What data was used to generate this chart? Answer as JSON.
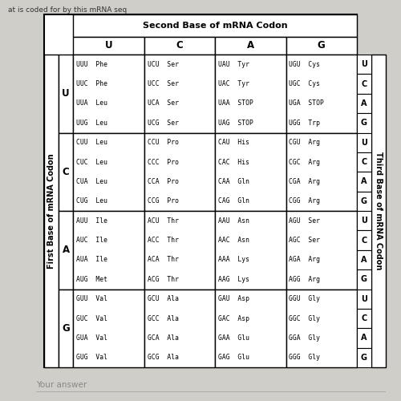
{
  "title_top": "at is coded for by this mRNA seq",
  "table_title": "Second Base of mRNA Codon",
  "second_bases": [
    "U",
    "C",
    "A",
    "G"
  ],
  "first_bases": [
    "U",
    "C",
    "A",
    "G"
  ],
  "third_bases_labels": [
    "U",
    "C",
    "A",
    "G"
  ],
  "left_label": "First Base of mRNA Codon",
  "right_label": "Third Base of mRNA Codon",
  "cells": [
    [
      [
        "UUU  Phe",
        "UUC  Phe",
        "UUA  Leu",
        "UUG  Leu"
      ],
      [
        "UCU  Ser",
        "UCC  Ser",
        "UCA  Ser",
        "UCG  Ser"
      ],
      [
        "UAU  Tyr",
        "UAC  Tyr",
        "UAA  STOP",
        "UAG  STOP"
      ],
      [
        "UGU  Cys",
        "UGC  Cys",
        "UGA  STOP",
        "UGG  Trp"
      ]
    ],
    [
      [
        "CUU  Leu",
        "CUC  Leu",
        "CUA  Leu",
        "CUG  Leu"
      ],
      [
        "CCU  Pro",
        "CCC  Pro",
        "CCA  Pro",
        "CCG  Pro"
      ],
      [
        "CAU  His",
        "CAC  His",
        "CAA  Gln",
        "CAG  Gln"
      ],
      [
        "CGU  Arg",
        "CGC  Arg",
        "CGA  Arg",
        "CGG  Arg"
      ]
    ],
    [
      [
        "AUU  Ile",
        "AUC  Ile",
        "AUA  Ile",
        "AUG  Met"
      ],
      [
        "ACU  Thr",
        "ACC  Thr",
        "ACA  Thr",
        "ACG  Thr"
      ],
      [
        "AAU  Asn",
        "AAC  Asn",
        "AAA  Lys",
        "AAG  Lys"
      ],
      [
        "AGU  Ser",
        "AGC  Ser",
        "AGA  Arg",
        "AGG  Arg"
      ]
    ],
    [
      [
        "GUU  Val",
        "GUC  Val",
        "GUA  Val",
        "GUG  Val"
      ],
      [
        "GCU  Ala",
        "GCC  Ala",
        "GCA  Ala",
        "GCG  Ala"
      ],
      [
        "GAU  Asp",
        "GAC  Asp",
        "GAA  Glu",
        "GAG  Glu"
      ],
      [
        "GGU  Gly",
        "GGC  Gly",
        "GGA  Gly",
        "GGG  Gly"
      ]
    ]
  ],
  "bg_color": "#d0cec8",
  "cell_bg": "#ffffff",
  "text_color": "#000000",
  "font_size_cell": 5.8,
  "font_size_header": 8.0,
  "font_size_base": 8.5,
  "font_size_axis_label": 7.0,
  "font_size_third_letter": 7.0,
  "bottom_text": "Your answer",
  "bottom_text_color": "#888888"
}
